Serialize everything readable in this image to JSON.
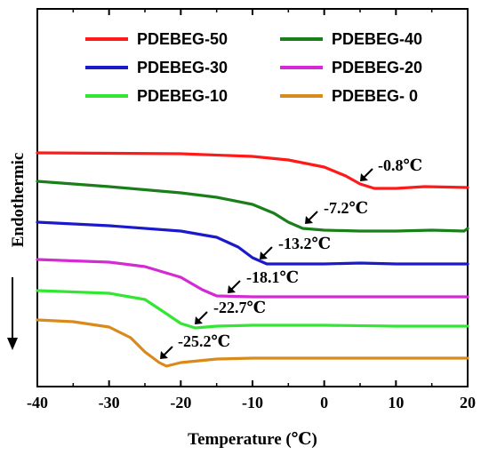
{
  "chart_data": {
    "type": "line",
    "xlabel": "Temperature (℃)",
    "ylabel": "Endothermic",
    "xlim": [
      -40,
      20
    ],
    "xticks": [
      "-40",
      "-30",
      "-20",
      "-10",
      "0",
      "10",
      "20"
    ],
    "grid": false,
    "legend_position": "top",
    "series": [
      {
        "name": "PDEBEG-50",
        "color": "#ff1a1a",
        "annotation": "-0.8℃",
        "points": [
          [
            -40,
            172
          ],
          [
            -20,
            173
          ],
          [
            -10,
            176
          ],
          [
            -5,
            180
          ],
          [
            0,
            188
          ],
          [
            3,
            198
          ],
          [
            5,
            207
          ],
          [
            7,
            212
          ],
          [
            10,
            212
          ],
          [
            14,
            210
          ],
          [
            20,
            211
          ]
        ]
      },
      {
        "name": "PDEBEG-40",
        "color": "#1a7f1a",
        "annotation": "-7.2℃",
        "points": [
          [
            -40,
            204
          ],
          [
            -30,
            210
          ],
          [
            -20,
            217
          ],
          [
            -15,
            222
          ],
          [
            -10,
            230
          ],
          [
            -7,
            240
          ],
          [
            -5,
            250
          ],
          [
            -3,
            257
          ],
          [
            0,
            259
          ],
          [
            5,
            260
          ],
          [
            10,
            260
          ],
          [
            15,
            259
          ],
          [
            19.5,
            260
          ],
          [
            20,
            257
          ]
        ]
      },
      {
        "name": "PDEBEG-30",
        "color": "#1a1acc",
        "annotation": "-13.2℃",
        "points": [
          [
            -40,
            250
          ],
          [
            -30,
            254
          ],
          [
            -20,
            260
          ],
          [
            -15,
            267
          ],
          [
            -12,
            278
          ],
          [
            -10,
            290
          ],
          [
            -8,
            297
          ],
          [
            -5,
            297
          ],
          [
            0,
            297
          ],
          [
            5,
            296
          ],
          [
            10,
            297
          ],
          [
            20,
            297
          ]
        ]
      },
      {
        "name": "PDEBEG-20",
        "color": "#d42ad4",
        "annotation": "-18.1℃",
        "points": [
          [
            -40,
            292
          ],
          [
            -30,
            295
          ],
          [
            -25,
            300
          ],
          [
            -20,
            312
          ],
          [
            -17,
            326
          ],
          [
            -15,
            333
          ],
          [
            -10,
            334
          ],
          [
            0,
            334
          ],
          [
            10,
            334
          ],
          [
            20,
            334
          ]
        ]
      },
      {
        "name": "PDEBEG-10",
        "color": "#33e633",
        "annotation": "-22.7℃",
        "points": [
          [
            -40,
            327
          ],
          [
            -30,
            330
          ],
          [
            -25,
            337
          ],
          [
            -22,
            353
          ],
          [
            -20,
            364
          ],
          [
            -18,
            369
          ],
          [
            -15,
            367
          ],
          [
            -10,
            366
          ],
          [
            0,
            366
          ],
          [
            10,
            367
          ],
          [
            20,
            367
          ]
        ]
      },
      {
        "name": "PDEBEG- 0",
        "color": "#d98a1a",
        "annotation": "-25.2℃",
        "points": [
          [
            -40,
            360
          ],
          [
            -35,
            362
          ],
          [
            -30,
            368
          ],
          [
            -27,
            380
          ],
          [
            -25,
            396
          ],
          [
            -23,
            408
          ],
          [
            -22,
            412
          ],
          [
            -20,
            408
          ],
          [
            -15,
            404
          ],
          [
            -10,
            403
          ],
          [
            0,
            403
          ],
          [
            10,
            403
          ],
          [
            20,
            403
          ]
        ]
      }
    ]
  }
}
